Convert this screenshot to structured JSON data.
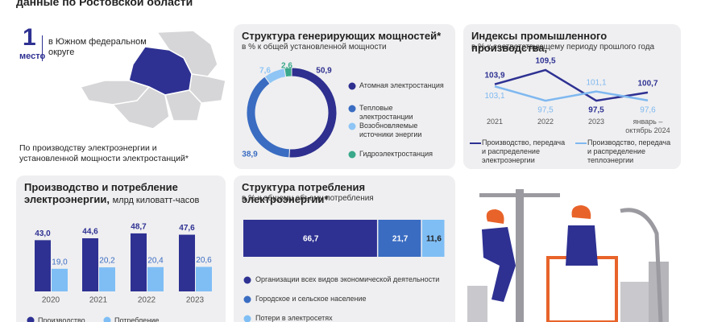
{
  "header": "данные по Ростовской области",
  "rank": {
    "number": 1,
    "label": "место",
    "text": "в Южном федеральном округе"
  },
  "note": "По производству электроэнергии и установленной мощности электростанций*",
  "chart_data": [
    {
      "type": "donut",
      "title": "Структура генерирующих мощностей*",
      "subtitle": "в % к общей установленной мощности",
      "categories": [
        "Атомная электростанция",
        "Тепловые электростанции",
        "Возобновляемые источники энергии",
        "Гидроэлектростанция"
      ],
      "values": [
        50.9,
        38.9,
        7.6,
        2.6
      ],
      "value_labels": [
        "50,9",
        "38,9",
        "7,6",
        "2,6"
      ],
      "colors": [
        "#2e2f8f",
        "#3a6cc2",
        "#8ec5f5",
        "#3aa88a"
      ]
    },
    {
      "type": "line",
      "title": "Индексы промышленного производства,",
      "subtitle": "в % к соответствующему периоду прошлого года",
      "categories": [
        "2021",
        "2022",
        "2023",
        "январь – октябрь 2024"
      ],
      "ylim": [
        95,
        112
      ],
      "series": [
        {
          "name": "Производство, передача и распределение электроэнергии",
          "color": "#2e3192",
          "values": [
            103.9,
            109.5,
            97.5,
            100.7
          ],
          "value_labels": [
            "103,9",
            "109,5",
            "97,5",
            "100,7"
          ]
        },
        {
          "name": "Производство, передача и распределение теплоэнергии",
          "color": "#7fb8f0",
          "values": [
            103.1,
            97.5,
            101.1,
            97.6
          ],
          "value_labels": [
            "103,1",
            "97,5",
            "101,1",
            "97,6"
          ]
        }
      ]
    },
    {
      "type": "bar",
      "title": "Производство и потребление электроэнергии,",
      "unit": "млрд киловатт-часов",
      "categories": [
        "2020",
        "2021",
        "2022",
        "2023"
      ],
      "ylim": [
        0,
        50
      ],
      "series": [
        {
          "name": "Производство",
          "color": "#2e3192",
          "values": [
            43.0,
            44.6,
            48.7,
            47.6
          ],
          "value_labels": [
            "43,0",
            "44,6",
            "48,7",
            "47,6"
          ]
        },
        {
          "name": "Потребление",
          "color": "#7fbef5",
          "values": [
            19.0,
            20.2,
            20.4,
            20.6
          ],
          "value_labels": [
            "19,0",
            "20,2",
            "20,4",
            "20,6"
          ]
        }
      ]
    },
    {
      "type": "stacked-bar",
      "title": "Структура потребления электроэнергии*",
      "subtitle": "в % к общему объему потребления",
      "xlim": [
        0,
        100
      ],
      "series": [
        {
          "name": "Организации всех видов экономической деятельности",
          "color": "#2e3192",
          "values": [
            66.7
          ],
          "value_labels": [
            "66,7"
          ]
        },
        {
          "name": "Городское и сельское население",
          "color": "#3a6cc2",
          "values": [
            21.7
          ],
          "value_labels": [
            "21,7"
          ]
        },
        {
          "name": "Потери в электросетях",
          "color": "#7fbef5",
          "values": [
            11.6
          ],
          "value_labels": [
            "11,6"
          ]
        }
      ]
    }
  ]
}
